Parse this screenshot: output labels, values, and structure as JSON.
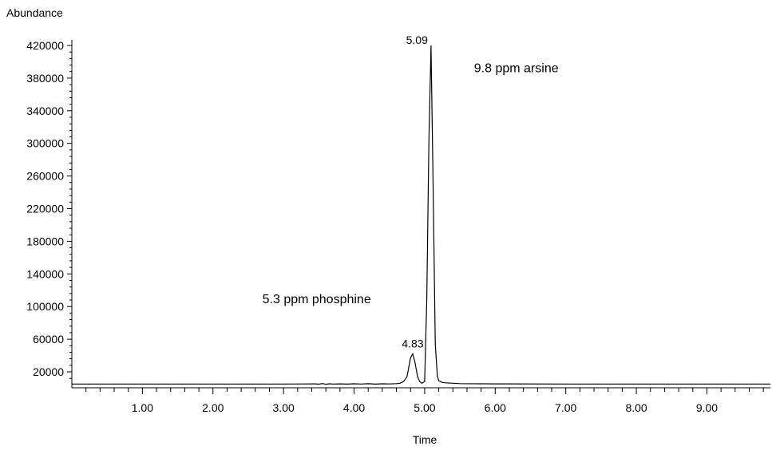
{
  "chart_data": {
    "type": "line",
    "title": "",
    "xlabel": "Time",
    "ylabel": "Abundance",
    "xlim": [
      0.0,
      9.9
    ],
    "ylim": [
      0,
      420000
    ],
    "x_ticks": [
      "1.00",
      "2.00",
      "3.00",
      "4.00",
      "5.00",
      "6.00",
      "7.00",
      "8.00",
      "9.00"
    ],
    "y_ticks": [
      "20000",
      "60000",
      "100000",
      "140000",
      "180000",
      "220000",
      "260000",
      "300000",
      "340000",
      "380000",
      "420000"
    ],
    "series": [
      {
        "x": [
          0.0,
          1.0,
          2.0,
          3.0,
          3.45,
          3.5,
          3.55,
          3.6,
          3.65,
          3.7,
          3.8,
          3.9,
          4.0,
          4.1,
          4.2,
          4.3,
          4.4,
          4.5,
          4.6,
          4.65,
          4.7,
          4.75,
          4.78,
          4.8,
          4.83,
          4.86,
          4.9,
          4.93,
          4.96,
          5.0,
          5.03,
          5.06,
          5.09,
          5.12,
          5.15,
          5.18,
          5.2,
          5.25,
          5.3,
          5.4,
          5.5,
          6.0,
          7.0,
          8.0,
          9.0,
          9.9
        ],
        "y": [
          5000,
          5000,
          5000,
          5000,
          5200,
          4800,
          5600,
          4700,
          5300,
          5000,
          5200,
          4900,
          5300,
          5000,
          5400,
          4900,
          5300,
          5100,
          5500,
          6000,
          8000,
          14000,
          28000,
          37000,
          42000,
          33000,
          14000,
          8000,
          6000,
          8000,
          110000,
          300000,
          420000,
          250000,
          55000,
          15000,
          9000,
          7000,
          6500,
          6000,
          5500,
          5200,
          5000,
          5000,
          5000,
          5000
        ]
      }
    ],
    "annotations": [
      {
        "text": "5.09",
        "x": 5.09,
        "y": 420000
      },
      {
        "text": "4.83",
        "x": 4.83,
        "y": 42000
      },
      {
        "text": "9.8 ppm arsine",
        "x": 5.7,
        "y": 387000
      },
      {
        "text": "5.3 ppm phosphine",
        "x": 2.7,
        "y": 104000
      }
    ],
    "grid": false,
    "legend": "none"
  }
}
